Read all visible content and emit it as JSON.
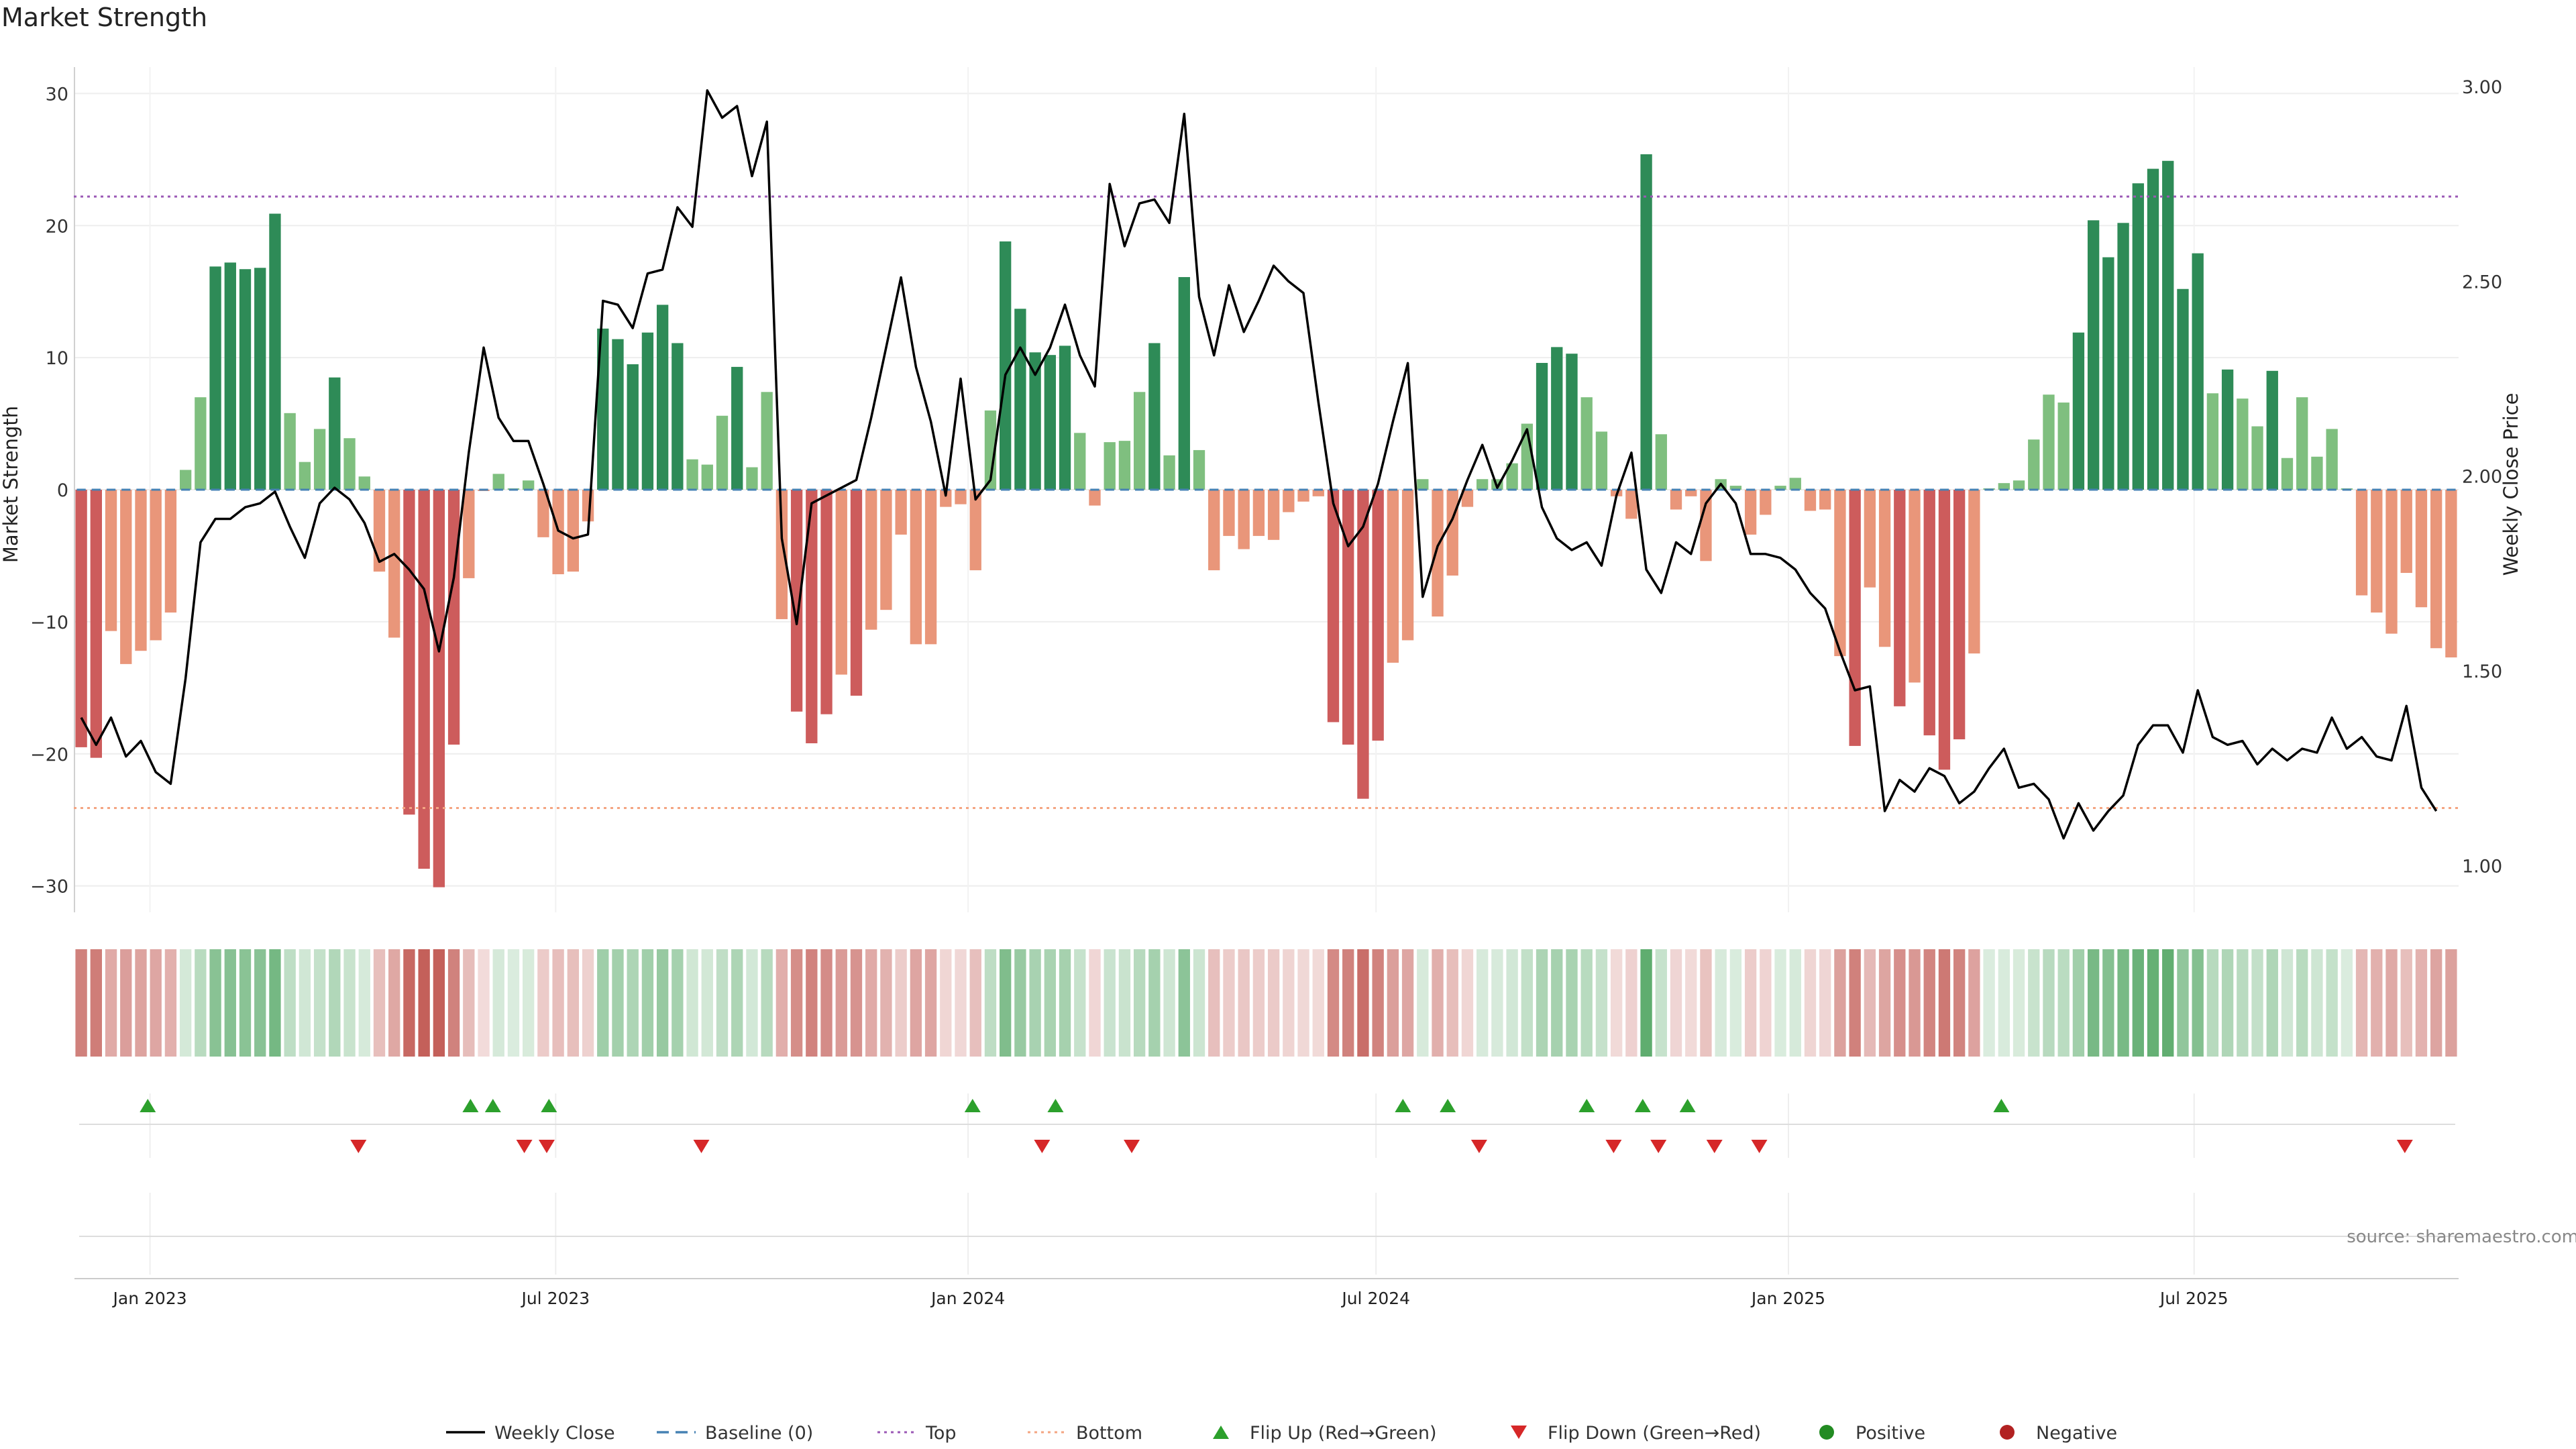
{
  "title": "Market Strength",
  "source": "source: sharemaestro.com",
  "colors": {
    "pos_dark": "#2e8b57",
    "pos_light": "#7fbf7f",
    "neg_dark": "#cd5c5c",
    "neg_light": "#e9967a",
    "price_line": "#000000",
    "baseline": "#4682b4",
    "top_line": "#9b59b6",
    "bottom_line": "#f4a582",
    "flip_up": "#2ca02c",
    "flip_down": "#d62728",
    "positive_dot": "#228b22",
    "negative_dot": "#b22222",
    "strip_pos": "#5aaa6a",
    "strip_neg": "#c4605a"
  },
  "legend": [
    {
      "key": "weekly-close",
      "label": "Weekly Close",
      "kind": "line"
    },
    {
      "key": "baseline",
      "label": "Baseline (0)",
      "kind": "dash"
    },
    {
      "key": "top",
      "label": "Top",
      "kind": "dot-line"
    },
    {
      "key": "bottom",
      "label": "Bottom",
      "kind": "dot-line-orange"
    },
    {
      "key": "flip-up",
      "label": "Flip Up (Red→Green)",
      "kind": "tri-up"
    },
    {
      "key": "flip-down",
      "label": "Flip Down (Green→Red)",
      "kind": "tri-down"
    },
    {
      "key": "positive",
      "label": "Positive",
      "kind": "dot-green"
    },
    {
      "key": "negative",
      "label": "Negative",
      "kind": "dot-red"
    }
  ],
  "chart_data": {
    "type": "bar",
    "ylabel_left": "Market Strength",
    "ylabel_right": "Weekly Close Price",
    "ylim_left": [
      -32,
      32
    ],
    "yticks_left": [
      30,
      20,
      10,
      0,
      -10,
      -20,
      -30
    ],
    "yticks_left_labels": [
      "30",
      "20",
      "10",
      "0",
      "−10",
      "−20",
      "−30"
    ],
    "ylim_right": [
      0.88,
      3.05
    ],
    "yticks_right": [
      3.0,
      2.5,
      2.0,
      1.5,
      1.0
    ],
    "yticks_right_labels": [
      "3.00",
      "2.50",
      "2.00",
      "1.50",
      "1.00"
    ],
    "top_level": 22.2,
    "bottom_level": -24.1,
    "x_start": "2022-11-28",
    "x_end": "2025-10-27",
    "x_ticks": [
      {
        "date": "2023-01-01",
        "label": "Jan 2023"
      },
      {
        "date": "2023-07-01",
        "label": "Jul 2023"
      },
      {
        "date": "2024-01-01",
        "label": "Jan 2024"
      },
      {
        "date": "2024-07-01",
        "label": "Jul 2024"
      },
      {
        "date": "2025-01-01",
        "label": "Jan 2025"
      },
      {
        "date": "2025-07-01",
        "label": "Jul 2025"
      }
    ],
    "strength": [
      -19.5,
      -20.3,
      -10.7,
      -13.2,
      -12.2,
      -11.4,
      -9.3,
      1.5,
      7,
      16.9,
      17.2,
      16.7,
      16.8,
      20.9,
      5.8,
      2.1,
      4.6,
      8.5,
      3.9,
      1,
      -6.2,
      -11.2,
      -24.6,
      -28.7,
      -30.1,
      -19.3,
      -6.7,
      -0.1,
      1.2,
      0.1,
      0.7,
      -3.6,
      -6.4,
      -6.2,
      -2.4,
      12.2,
      11.4,
      9.5,
      11.9,
      14,
      11.1,
      2.3,
      1.9,
      5.6,
      9.3,
      1.7,
      7.4,
      -9.8,
      -16.8,
      -19.2,
      -17,
      -14,
      -15.6,
      -10.6,
      -9.1,
      -3.4,
      -11.7,
      -11.7,
      -1.3,
      -1.1,
      -6.1,
      6,
      18.8,
      13.7,
      10.4,
      10.2,
      10.9,
      4.3,
      -1.2,
      3.6,
      3.7,
      7.4,
      11.1,
      2.6,
      16.1,
      3,
      -6.1,
      -3.5,
      -4.5,
      -3.5,
      -3.8,
      -1.7,
      -0.9,
      -0.5,
      -17.6,
      -19.3,
      -23.4,
      -19,
      -13.1,
      -11.4,
      0.8,
      -9.6,
      -6.5,
      -1.3,
      0.8,
      0.8,
      2,
      5,
      9.6,
      10.8,
      10.3,
      7,
      4.4,
      -0.5,
      -2.2,
      25.4,
      4.2,
      -1.5,
      -0.5,
      -5.4,
      0.8,
      0.3,
      -3.4,
      -1.9,
      0.3,
      0.9,
      -1.6,
      -1.5,
      -12.6,
      -19.4,
      -7.4,
      -11.9,
      -16.4,
      -14.6,
      -18.6,
      -21.2,
      -18.9,
      -12.4,
      0.1,
      0.5,
      0.7,
      3.8,
      7.2,
      6.6,
      11.9,
      20.4,
      17.6,
      20.2,
      23.2,
      24.3,
      24.9,
      15.2,
      17.9,
      7.3,
      9.1,
      6.9,
      4.8,
      9,
      2.4,
      7,
      2.5,
      4.6,
      0.1,
      -8,
      -9.3,
      -10.9,
      -6.3,
      -8.9,
      -12,
      -12.7
    ],
    "close": [
      1.38,
      1.31,
      1.38,
      1.28,
      1.32,
      1.24,
      1.21,
      1.48,
      1.83,
      1.89,
      1.89,
      1.92,
      1.93,
      1.96,
      1.87,
      1.79,
      1.93,
      1.97,
      1.94,
      1.88,
      1.78,
      1.8,
      1.76,
      1.71,
      1.55,
      1.74,
      2.06,
      2.33,
      2.15,
      2.09,
      2.09,
      1.98,
      1.86,
      1.84,
      1.85,
      2.45,
      2.44,
      2.38,
      2.52,
      2.53,
      2.69,
      2.64,
      2.99,
      2.92,
      2.95,
      2.77,
      2.91,
      1.84,
      1.62,
      1.93,
      1.95,
      1.97,
      1.99,
      2.15,
      2.33,
      2.51,
      2.28,
      2.14,
      1.95,
      2.25,
      1.94,
      1.99,
      2.26,
      2.33,
      2.26,
      2.33,
      2.44,
      2.31,
      2.23,
      2.75,
      2.59,
      2.7,
      2.71,
      2.65,
      2.93,
      2.46,
      2.31,
      2.49,
      2.37,
      2.45,
      2.54,
      2.5,
      2.47,
      2.19,
      1.93,
      1.82,
      1.87,
      1.98,
      2.14,
      2.29,
      1.69,
      1.82,
      1.89,
      1.99,
      2.08,
      1.97,
      2.04,
      2.12,
      1.92,
      1.84,
      1.81,
      1.83,
      1.77,
      1.95,
      2.06,
      1.76,
      1.7,
      1.83,
      1.8,
      1.93,
      1.98,
      1.93,
      1.8,
      1.8,
      1.79,
      1.76,
      1.7,
      1.66,
      1.55,
      1.45,
      1.46,
      1.14,
      1.22,
      1.19,
      1.25,
      1.23,
      1.16,
      1.19,
      1.25,
      1.3,
      1.2,
      1.21,
      1.17,
      1.07,
      1.16,
      1.09,
      1.14,
      1.18,
      1.31,
      1.36,
      1.36,
      1.29,
      1.45,
      1.33,
      1.31,
      1.32,
      1.26,
      1.3,
      1.27,
      1.3,
      1.29,
      1.38,
      1.3,
      1.33,
      1.28,
      1.27,
      1.41,
      1.2,
      1.14
    ],
    "flip_up_dates": [
      "2022-12-31",
      "2023-05-24",
      "2023-06-03",
      "2023-06-28",
      "2024-01-03",
      "2024-02-09",
      "2024-07-13",
      "2024-08-02",
      "2024-10-03",
      "2024-10-28",
      "2024-11-17",
      "2025-04-06"
    ],
    "flip_down_dates": [
      "2023-04-04",
      "2023-06-17",
      "2023-06-27",
      "2023-09-04",
      "2024-02-03",
      "2024-03-14",
      "2024-08-16",
      "2024-10-15",
      "2024-11-04",
      "2024-11-29",
      "2024-12-19",
      "2025-10-03"
    ]
  }
}
